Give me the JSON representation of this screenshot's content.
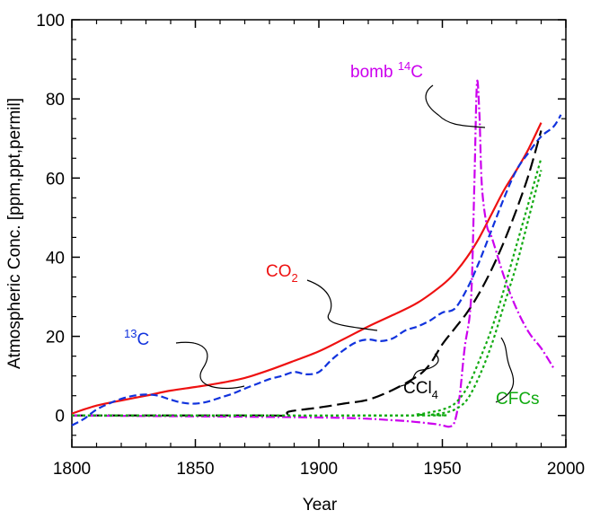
{
  "chart_data": {
    "type": "line",
    "title": "",
    "xlabel": "Year",
    "ylabel": "Atmospheric Conc. [ppm,ppt,permil]",
    "xlim": [
      1800,
      2000
    ],
    "ylim": [
      -8,
      100
    ],
    "x_ticks": [
      1800,
      1850,
      1900,
      1950,
      2000
    ],
    "y_ticks": [
      0,
      20,
      40,
      60,
      80,
      100
    ],
    "grid": false,
    "legend": "inline labels",
    "series": [
      {
        "name": "CO2",
        "label_main": "CO",
        "label_sub": "2",
        "color": "#ee1111",
        "dash": "solid",
        "x": [
          1800,
          1810,
          1820,
          1830,
          1840,
          1850,
          1860,
          1870,
          1880,
          1890,
          1900,
          1910,
          1920,
          1930,
          1940,
          1950,
          1955,
          1960,
          1965,
          1970,
          1975,
          1980,
          1985,
          1990
        ],
        "y": [
          0.5,
          2.5,
          3.8,
          5.0,
          6.3,
          7.2,
          8.2,
          9.5,
          11.5,
          13.8,
          16.2,
          19.3,
          22.5,
          25.4,
          28.5,
          33.0,
          36.0,
          40.0,
          45.0,
          51.0,
          57.0,
          62.0,
          67.5,
          74.0
        ]
      },
      {
        "name": "13C",
        "label_main": "C",
        "label_sup": "13",
        "color": "#1133dd",
        "dash": "8 4",
        "x": [
          1800,
          1805,
          1810,
          1815,
          1820,
          1825,
          1830,
          1835,
          1840,
          1845,
          1850,
          1855,
          1860,
          1865,
          1870,
          1875,
          1880,
          1885,
          1890,
          1895,
          1900,
          1905,
          1910,
          1915,
          1920,
          1925,
          1930,
          1935,
          1940,
          1945,
          1950,
          1955,
          1960,
          1965,
          1970,
          1975,
          1980,
          1985,
          1990,
          1995,
          1998
        ],
        "y": [
          -2.5,
          -0.8,
          1.5,
          3.0,
          4.2,
          5.0,
          5.3,
          5.0,
          4.0,
          3.2,
          3.0,
          3.5,
          4.5,
          5.5,
          6.8,
          8.0,
          9.2,
          10.0,
          11.0,
          10.4,
          11.0,
          14.0,
          16.5,
          18.5,
          19.2,
          18.8,
          19.5,
          21.5,
          22.5,
          24.0,
          26.0,
          27.0,
          32.0,
          39.0,
          47.0,
          55.0,
          62.0,
          66.5,
          70.5,
          73.0,
          76.0
        ]
      },
      {
        "name": "CCl4",
        "label_main": "CCl",
        "label_sub": "4",
        "color": "#000000",
        "dash": "14 6",
        "x": [
          1800,
          1850,
          1880,
          1887,
          1888,
          1900,
          1910,
          1920,
          1930,
          1940,
          1945,
          1950,
          1955,
          1960,
          1965,
          1970,
          1975,
          1980,
          1985,
          1990
        ],
        "y": [
          0,
          0,
          0,
          0,
          1.0,
          2.0,
          3.0,
          4.0,
          6.5,
          10.0,
          13.0,
          18.0,
          22.0,
          26.0,
          31.0,
          37.0,
          44.0,
          52.0,
          61.0,
          72.0
        ]
      },
      {
        "name": "bomb 14C",
        "label_main": "bomb ",
        "label_sup": "14",
        "label_end": "C",
        "color": "#cc00ee",
        "dash": "10 3 2 3",
        "x": [
          1800,
          1900,
          1930,
          1945,
          1950,
          1953,
          1955,
          1957,
          1959,
          1961,
          1962,
          1963,
          1964,
          1965,
          1966,
          1968,
          1970,
          1975,
          1980,
          1985,
          1990,
          1995
        ],
        "y": [
          0,
          -0.5,
          -1.2,
          -2.0,
          -2.5,
          -2.8,
          -1.5,
          5.0,
          17.0,
          25.0,
          35.0,
          60.0,
          84.0,
          76.0,
          58.0,
          48.0,
          45.0,
          35.0,
          27.0,
          21.0,
          17.0,
          12.0
        ]
      },
      {
        "name": "CFCs",
        "label_main": "CFCs",
        "color": "#11aa11",
        "dash": "3 3",
        "x": [
          1800,
          1930,
          1940,
          1945,
          1950,
          1955,
          1960,
          1965,
          1970,
          1975,
          1980,
          1985,
          1990
        ],
        "y": [
          0,
          0,
          0.3,
          0.8,
          1.5,
          3.0,
          7.0,
          14.0,
          22.0,
          32.0,
          43.0,
          54.0,
          65.0
        ]
      },
      {
        "name": "CFCs (second)",
        "color": "#11aa11",
        "dash": "3 3",
        "x": [
          1800,
          1940,
          1945,
          1950,
          1955,
          1960,
          1965,
          1970,
          1975,
          1980,
          1985,
          1990
        ],
        "y": [
          0,
          0,
          0.2,
          0.6,
          1.5,
          4.0,
          10.0,
          18.0,
          28.0,
          38.0,
          50.0,
          62.0
        ]
      }
    ],
    "annotations": [
      {
        "target": "bomb 14C"
      },
      {
        "target": "CO2"
      },
      {
        "target": "13C"
      },
      {
        "target": "CCl4"
      },
      {
        "target": "CFCs"
      }
    ]
  }
}
